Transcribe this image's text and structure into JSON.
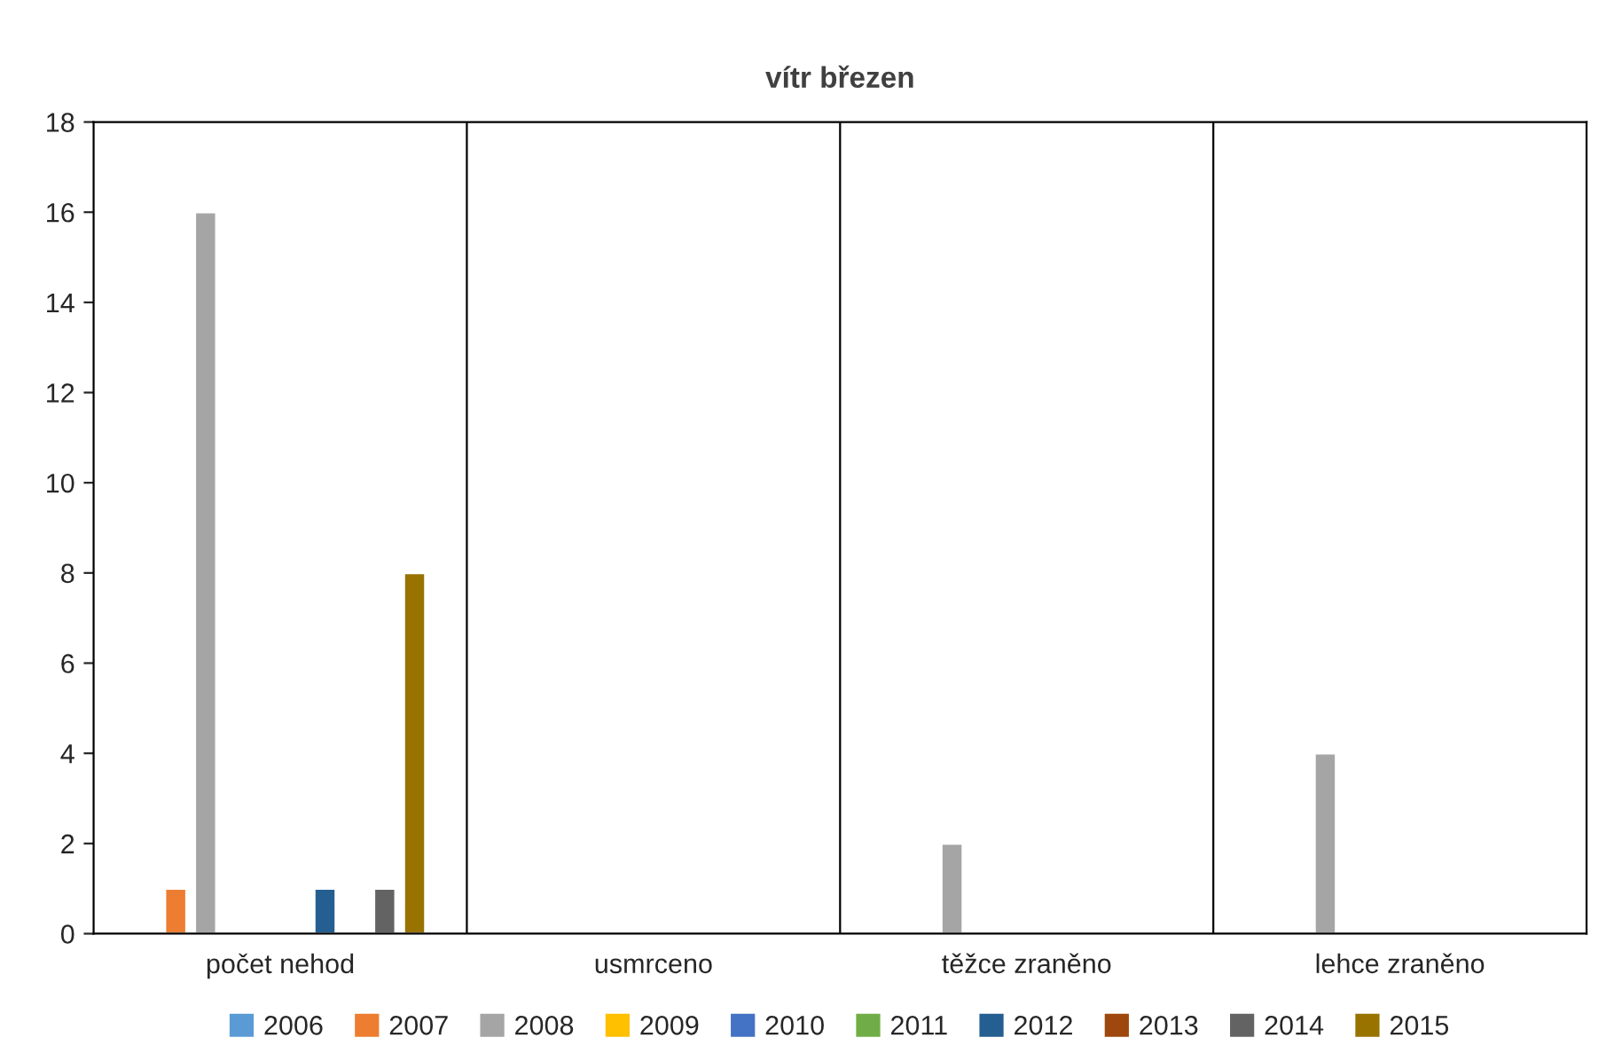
{
  "chart_data": {
    "type": "bar",
    "title": "vítr březen",
    "categories": [
      "počet nehod",
      "usmrceno",
      "těžce zraněno",
      "lehce zraněno"
    ],
    "series": [
      {
        "name": "2006",
        "color": "#5b9bd5",
        "values": [
          null,
          null,
          null,
          null
        ]
      },
      {
        "name": "2007",
        "color": "#ed7d31",
        "values": [
          1,
          null,
          null,
          null
        ]
      },
      {
        "name": "2008",
        "color": "#a5a5a5",
        "values": [
          16,
          null,
          2,
          4
        ]
      },
      {
        "name": "2009",
        "color": "#ffc000",
        "values": [
          null,
          null,
          null,
          null
        ]
      },
      {
        "name": "2010",
        "color": "#4472c4",
        "values": [
          null,
          null,
          null,
          null
        ]
      },
      {
        "name": "2011",
        "color": "#70ad47",
        "values": [
          null,
          null,
          null,
          null
        ]
      },
      {
        "name": "2012",
        "color": "#255e91",
        "values": [
          1,
          null,
          null,
          null
        ]
      },
      {
        "name": "2013",
        "color": "#9e480e",
        "values": [
          null,
          null,
          null,
          null
        ]
      },
      {
        "name": "2014",
        "color": "#636363",
        "values": [
          1,
          null,
          null,
          null
        ]
      },
      {
        "name": "2015",
        "color": "#997300",
        "values": [
          8,
          null,
          null,
          null
        ]
      }
    ],
    "ylim": [
      0,
      18
    ],
    "yticks": [
      0,
      2,
      4,
      6,
      8,
      10,
      12,
      14,
      16,
      18
    ],
    "grid": "x",
    "legend": "bottom"
  }
}
